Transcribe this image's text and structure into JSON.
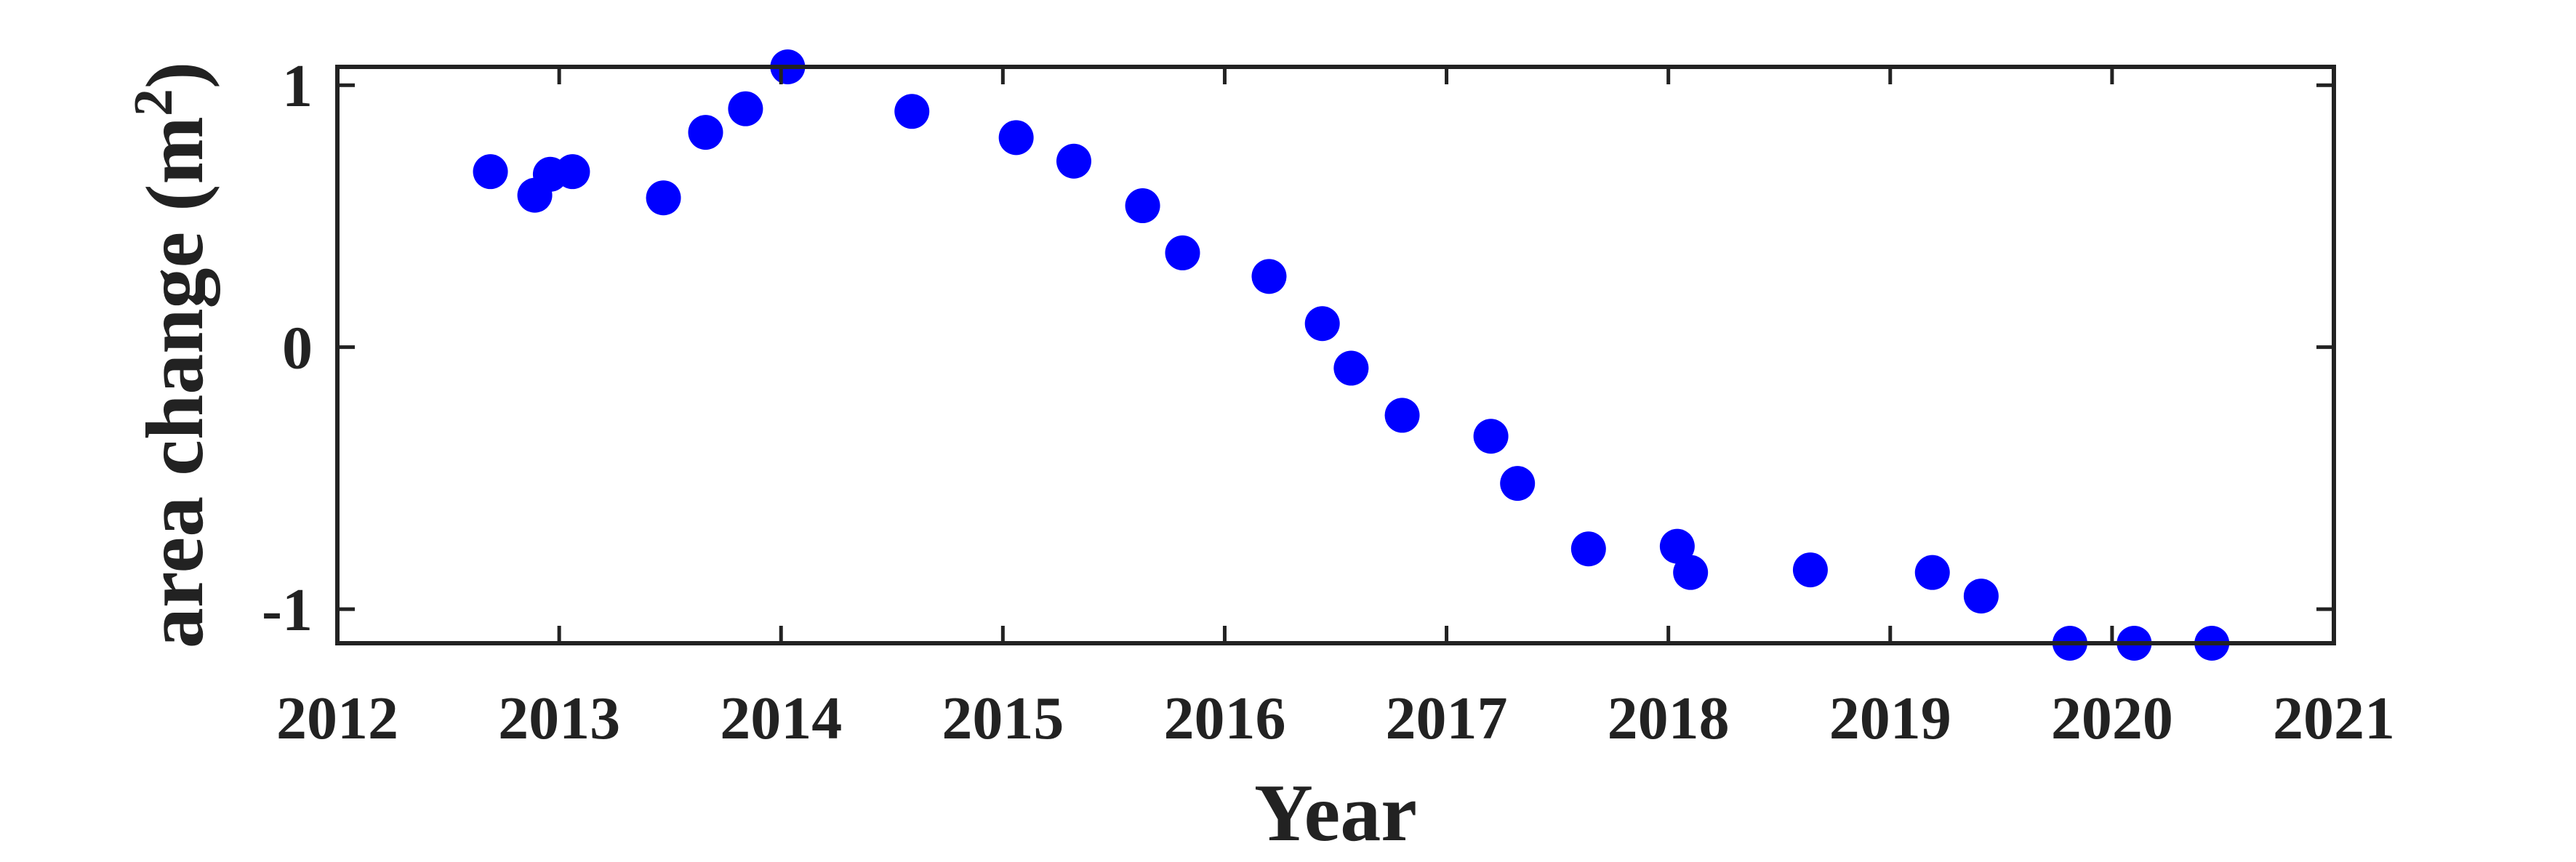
{
  "chart_data": {
    "type": "scatter",
    "title": "",
    "xlabel": "Year",
    "ylabel": "area change (m",
    "ylabel_superscript": "2",
    "ylabel_suffix": ")",
    "xlim": [
      2012,
      2021
    ],
    "ylim": [
      -1.13,
      1.07
    ],
    "x_ticks": [
      "2012",
      "2013",
      "2014",
      "2015",
      "2016",
      "2017",
      "2018",
      "2019",
      "2020",
      "2021"
    ],
    "y_ticks": [
      "-1",
      "0",
      "1"
    ],
    "grid": false,
    "legend": "none",
    "marker_color": "#0000FF",
    "axis_color": "#222222",
    "series": [
      {
        "x": [
          2012.69,
          2012.89,
          2012.96,
          2013.06,
          2013.47,
          2013.66,
          2013.84,
          2014.03,
          2014.59,
          2015.06,
          2015.32,
          2015.63,
          2015.81,
          2016.2,
          2016.44,
          2016.57,
          2016.8,
          2017.2,
          2017.32,
          2017.64,
          2018.04,
          2018.1,
          2018.64,
          2019.19,
          2019.41,
          2019.81,
          2020.1,
          2020.45
        ],
        "y": [
          0.67,
          0.58,
          0.66,
          0.67,
          0.57,
          0.82,
          0.91,
          1.07,
          0.9,
          0.8,
          0.71,
          0.54,
          0.36,
          0.27,
          0.09,
          -0.08,
          -0.26,
          -0.34,
          -0.52,
          -0.77,
          -0.76,
          -0.86,
          -0.85,
          -0.86,
          -0.95,
          -1.13,
          -1.13,
          -1.13
        ]
      }
    ]
  }
}
